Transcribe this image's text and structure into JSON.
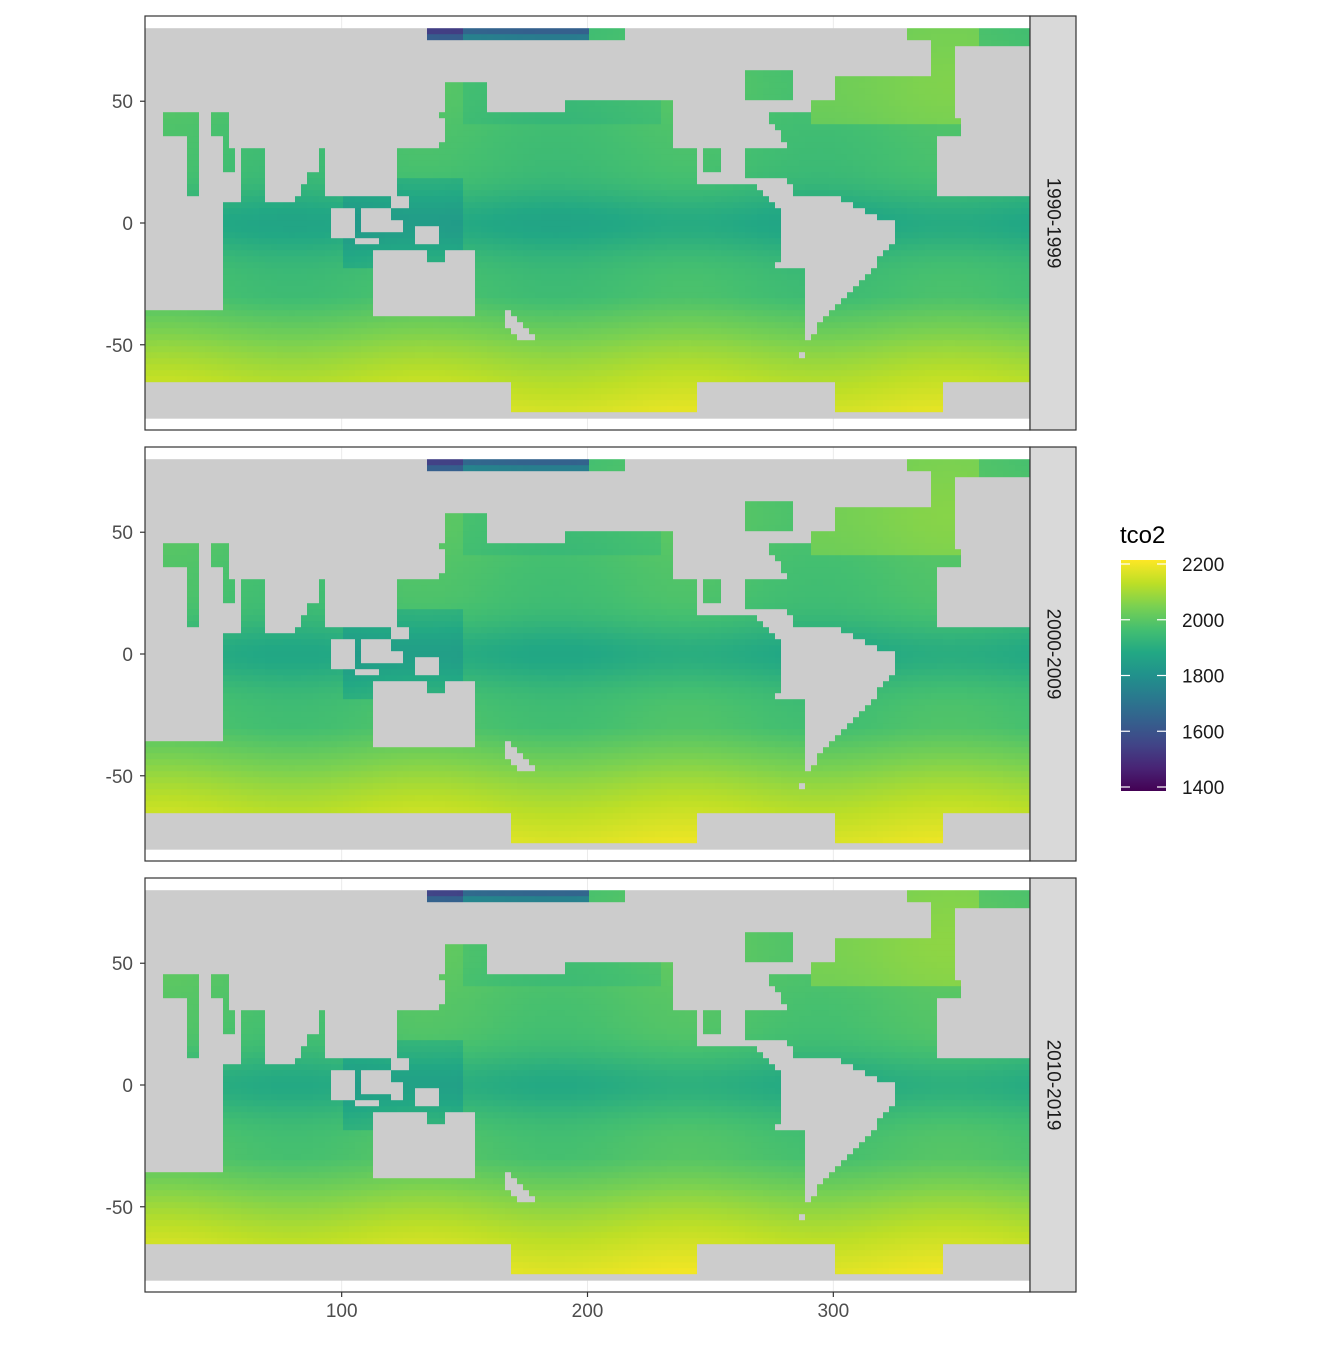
{
  "chart_data": {
    "type": "heatmap",
    "facets": [
      {
        "label": "1990-1999",
        "variant": 0
      },
      {
        "label": "2000-2009",
        "variant": 1
      },
      {
        "label": "2010-2019",
        "variant": 2
      }
    ],
    "x_ticks": [
      100,
      200,
      300
    ],
    "y_ticks": [
      50,
      0,
      -50
    ],
    "x_tick_labels": [
      "100",
      "200",
      "300"
    ],
    "y_tick_labels": [
      "50",
      "0",
      "-50"
    ],
    "xlim": [
      20,
      380
    ],
    "ylim": [
      -85,
      85
    ],
    "legend": {
      "title": "tco2",
      "placement": "right",
      "breaks": [
        2200,
        2000,
        1800,
        1600,
        1400
      ],
      "break_labels": [
        "2200",
        "2000",
        "1800",
        "1600",
        "1400"
      ],
      "range": [
        1400,
        2200
      ]
    },
    "colormap": "viridis",
    "land_color": "#cccccc",
    "missing_color": "#ffffff"
  }
}
